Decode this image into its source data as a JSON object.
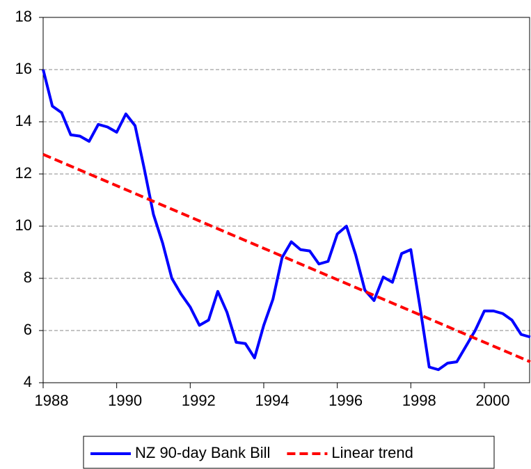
{
  "chart_data": {
    "type": "line",
    "x": [
      1988,
      1988.25,
      1988.5,
      1988.75,
      1989,
      1989.25,
      1989.5,
      1989.75,
      1990,
      1990.25,
      1990.5,
      1990.75,
      1991,
      1991.25,
      1991.5,
      1991.75,
      1992,
      1992.25,
      1992.5,
      1992.75,
      1993,
      1993.25,
      1993.5,
      1993.75,
      1994,
      1994.25,
      1994.5,
      1994.75,
      1995,
      1995.25,
      1995.5,
      1995.75,
      1996,
      1996.25,
      1996.5,
      1996.75,
      1997,
      1997.25,
      1997.5,
      1997.75,
      1998,
      1998.25,
      1998.5,
      1998.75,
      1999,
      1999.25,
      1999.5,
      1999.75,
      2000,
      2000.25,
      2000.5,
      2000.75,
      2001,
      2001.25
    ],
    "series": [
      {
        "name": "NZ 90-day Bank Bill",
        "color": "#0000ff",
        "dash": false,
        "values": [
          16.0,
          14.6,
          14.35,
          13.5,
          13.45,
          13.25,
          13.9,
          13.8,
          13.6,
          14.3,
          13.85,
          12.2,
          10.45,
          9.35,
          8.0,
          7.4,
          6.9,
          6.2,
          6.4,
          7.5,
          6.7,
          5.55,
          5.5,
          4.95,
          6.2,
          7.2,
          8.8,
          9.4,
          9.1,
          9.05,
          8.55,
          8.65,
          9.7,
          10.0,
          8.9,
          7.55,
          7.15,
          8.05,
          7.85,
          8.95,
          9.1,
          6.9,
          4.6,
          4.5,
          4.75,
          4.8,
          5.4,
          6.0,
          6.75,
          6.75,
          6.65,
          6.4,
          5.85,
          5.75
        ]
      },
      {
        "name": "Linear trend",
        "color": "#ff0000",
        "dash": true,
        "values": [
          12.75,
          12.6,
          12.45,
          12.3,
          12.15,
          12.0,
          11.85,
          11.7,
          11.55,
          11.4,
          11.25,
          11.1,
          10.95,
          10.8,
          10.65,
          10.5,
          10.35,
          10.2,
          10.05,
          9.9,
          9.75,
          9.6,
          9.45,
          9.3,
          9.15,
          9.0,
          8.85,
          8.7,
          8.55,
          8.4,
          8.25,
          8.1,
          7.95,
          7.8,
          7.65,
          7.5,
          7.35,
          7.2,
          7.05,
          6.9,
          6.75,
          6.6,
          6.45,
          6.3,
          6.15,
          6.0,
          5.85,
          5.7,
          5.55,
          5.4,
          5.25,
          5.1,
          4.95,
          4.8
        ]
      }
    ],
    "xlim": [
      1988,
      2001.25
    ],
    "xticks": [
      1988,
      1990,
      1992,
      1994,
      1996,
      1998,
      2000
    ],
    "ylim": [
      4,
      18
    ],
    "yticks": [
      4,
      6,
      8,
      10,
      12,
      14,
      16,
      18
    ],
    "grid": true,
    "legend": "bottom"
  }
}
